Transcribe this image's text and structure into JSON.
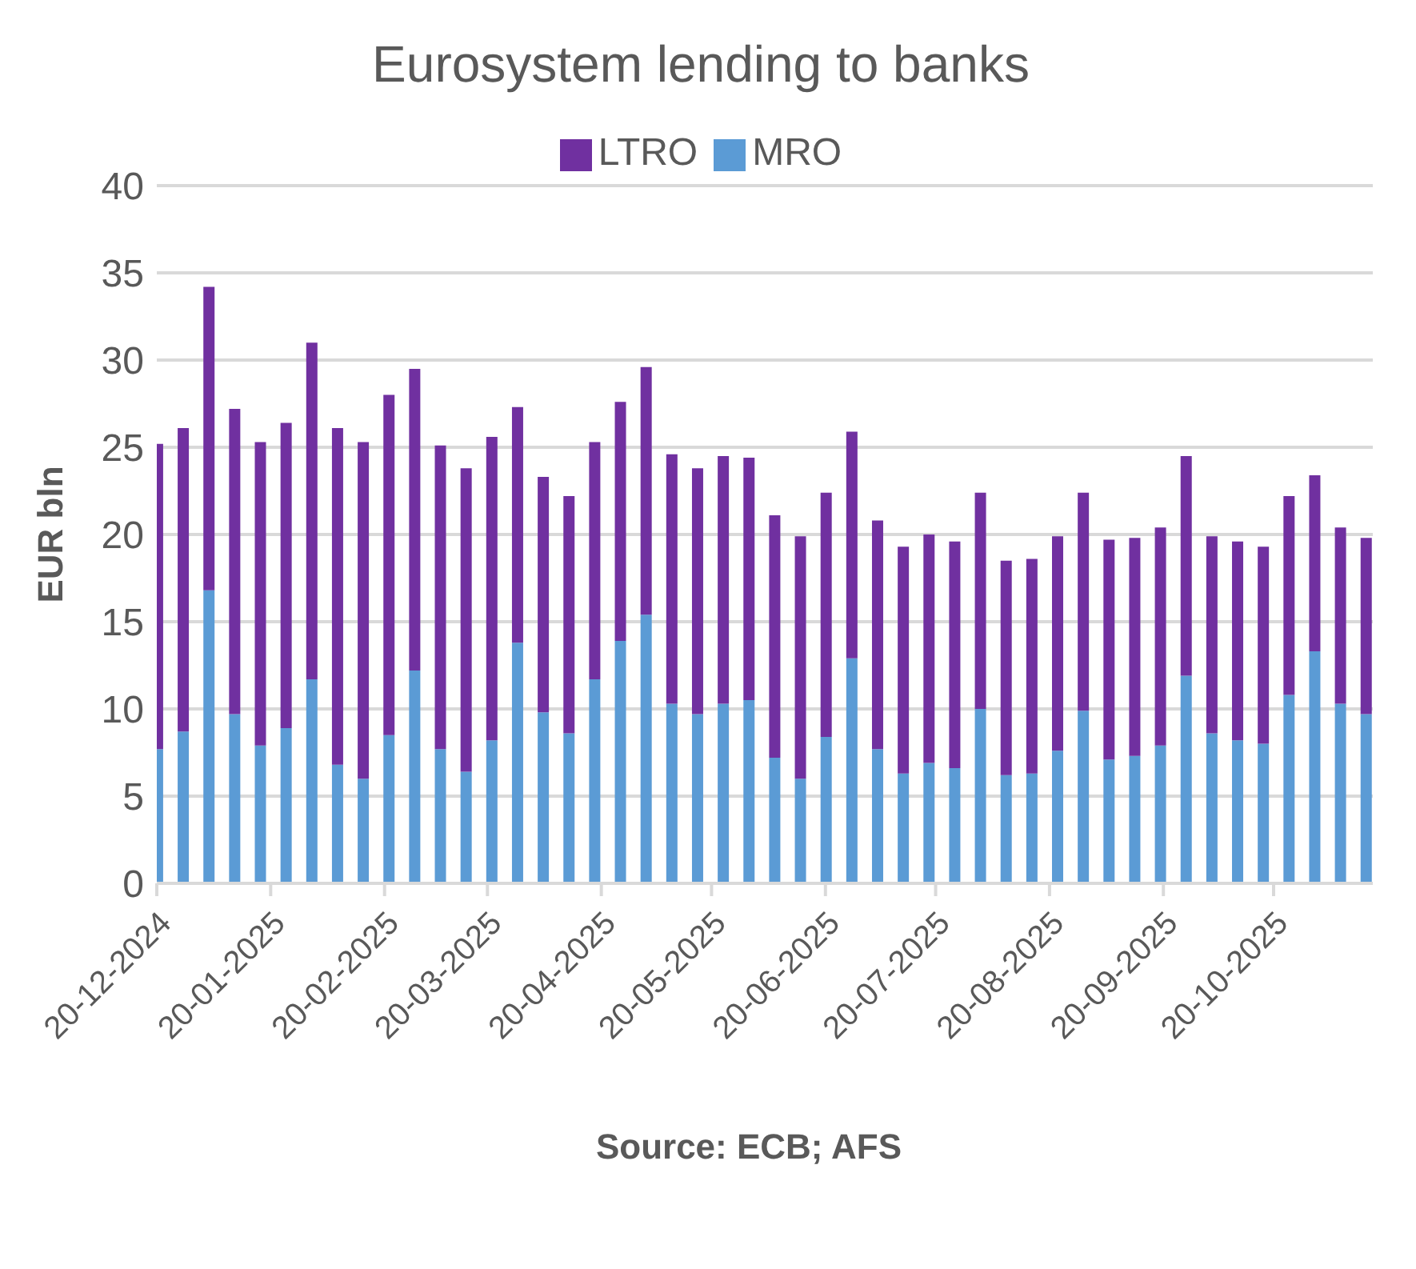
{
  "chart_data": {
    "type": "bar",
    "title": "Eurosystem lending to banks",
    "ylabel": "EUR bln",
    "annotations": [
      "Source: ECB; AFS"
    ],
    "stacked": true,
    "legend": "top",
    "grid": "y",
    "x": [
      "2024-12-20",
      "2024-12-27",
      "2025-01-03",
      "2025-01-10",
      "2025-01-17",
      "2025-01-24",
      "2025-01-31",
      "2025-02-07",
      "2025-02-14",
      "2025-02-21",
      "2025-02-28",
      "2025-03-07",
      "2025-03-14",
      "2025-03-21",
      "2025-03-28",
      "2025-04-04",
      "2025-04-11",
      "2025-04-18",
      "2025-04-25",
      "2025-05-02",
      "2025-05-09",
      "2025-05-16",
      "2025-05-23",
      "2025-05-30",
      "2025-06-06",
      "2025-06-13",
      "2025-06-20",
      "2025-06-27",
      "2025-07-04",
      "2025-07-11",
      "2025-07-18",
      "2025-07-25",
      "2025-08-01",
      "2025-08-08",
      "2025-08-15",
      "2025-08-22",
      "2025-08-29",
      "2025-09-05",
      "2025-09-12",
      "2025-09-19",
      "2025-09-26",
      "2025-10-03",
      "2025-10-10",
      "2025-10-17",
      "2025-10-24",
      "2025-10-31",
      "2025-11-07",
      "2025-11-14"
    ],
    "xlim": [
      "2024-12-20",
      "2025-11-16"
    ],
    "xticks": [
      {
        "value": "2024-12-20",
        "label": "20-12-2024"
      },
      {
        "value": "2025-01-20",
        "label": "20-01-2025"
      },
      {
        "value": "2025-02-20",
        "label": "20-02-2025"
      },
      {
        "value": "2025-03-20",
        "label": "20-03-2025"
      },
      {
        "value": "2025-04-20",
        "label": "20-04-2025"
      },
      {
        "value": "2025-05-20",
        "label": "20-05-2025"
      },
      {
        "value": "2025-06-20",
        "label": "20-06-2025"
      },
      {
        "value": "2025-07-20",
        "label": "20-07-2025"
      },
      {
        "value": "2025-08-20",
        "label": "20-08-2025"
      },
      {
        "value": "2025-09-20",
        "label": "20-09-2025"
      },
      {
        "value": "2025-10-20",
        "label": "20-10-2025"
      }
    ],
    "ylim": [
      0,
      40
    ],
    "yticks": [
      0,
      5,
      10,
      15,
      20,
      25,
      30,
      35,
      40
    ],
    "series": [
      {
        "name": "MRO",
        "color": "#5b9bd5",
        "values": [
          7.7,
          8.7,
          16.8,
          9.7,
          7.9,
          8.9,
          11.7,
          6.8,
          6.0,
          8.5,
          12.2,
          7.7,
          6.4,
          8.2,
          13.8,
          9.8,
          8.6,
          11.7,
          13.9,
          15.4,
          10.3,
          9.7,
          10.3,
          10.5,
          7.2,
          6.0,
          8.4,
          12.9,
          7.7,
          6.3,
          6.9,
          6.6,
          10.0,
          6.2,
          6.3,
          7.6,
          9.9,
          7.1,
          7.3,
          7.9,
          11.9,
          8.6,
          8.2,
          8.0,
          10.8,
          13.3,
          10.3,
          9.7
        ]
      },
      {
        "name": "LTRO",
        "color": "#7030a0",
        "values": [
          17.5,
          17.4,
          17.4,
          17.5,
          17.4,
          17.5,
          19.3,
          19.3,
          19.3,
          19.5,
          17.3,
          17.4,
          17.4,
          17.4,
          13.5,
          13.5,
          13.6,
          13.6,
          13.7,
          14.2,
          14.3,
          14.1,
          14.2,
          13.9,
          13.9,
          13.9,
          14.0,
          13.0,
          13.1,
          13.0,
          13.1,
          13.0,
          12.4,
          12.3,
          12.3,
          12.3,
          12.5,
          12.6,
          12.5,
          12.5,
          12.6,
          11.3,
          11.4,
          11.3,
          11.4,
          10.1,
          10.1,
          10.1
        ]
      }
    ]
  }
}
